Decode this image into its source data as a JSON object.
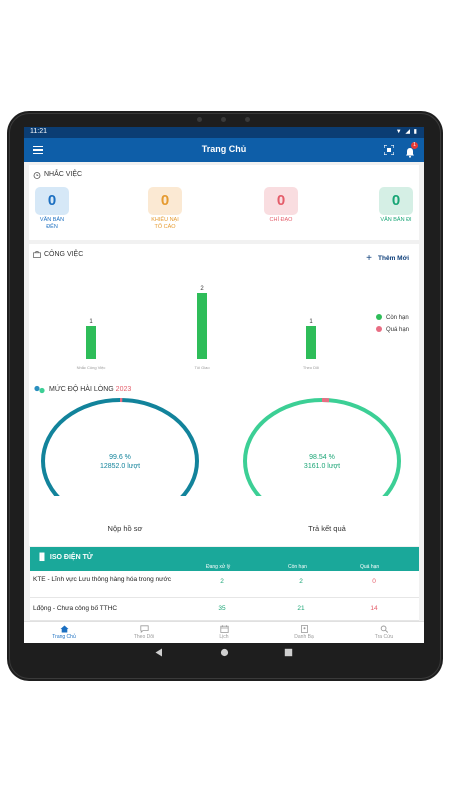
{
  "status_bar": {
    "time": "11:21"
  },
  "header": {
    "title": "Trang Chủ",
    "notification_count": "1"
  },
  "reminders": {
    "title": "NHẮC VIỆC",
    "items": [
      {
        "count": "0",
        "label": "VĂN BẢN ĐẾN",
        "color": "#1b6fc1",
        "bg": "#d6e8f7"
      },
      {
        "count": "0",
        "label": "KHIẾU NẠI TỐ CÁO",
        "color": "#e59a2f",
        "bg": "#fbe9d3"
      },
      {
        "count": "0",
        "label": "CHỈ ĐẠO",
        "color": "#e45c69",
        "bg": "#f9dde0"
      },
      {
        "count": "0",
        "label": "VĂN BẢN ĐI",
        "color": "#17a575",
        "bg": "#d5efe5"
      }
    ]
  },
  "work": {
    "title": "CÔNG VIỆC",
    "add_label": "Thêm Mới",
    "legend": [
      {
        "label": "Còn hạn",
        "color": "#2ebd59"
      },
      {
        "label": "Quá hạn",
        "color": "#e86d83"
      }
    ]
  },
  "chart_data": {
    "type": "bar",
    "categories": [
      "Nhắc Công Việc",
      "Tôi Giao",
      "Theo Dõi"
    ],
    "values": [
      1,
      2,
      1
    ],
    "ylim": [
      0,
      2
    ],
    "bar_color": "#2ebd59"
  },
  "satisfaction": {
    "title": "MỨC ĐỘ HÀI LÒNG",
    "year": "2023",
    "rings": [
      {
        "percent_text": "99.6 %",
        "count_text": "12852.0 lượt",
        "caption": "Nộp hồ sơ",
        "color": "#12839b",
        "text_color": "#12839b",
        "fraction": 0.996
      },
      {
        "percent_text": "98.54 %",
        "count_text": "3161.0 lượt",
        "caption": "Trả kết quả",
        "color": "#3ccf95",
        "text_color": "#1ba576",
        "fraction": 0.9854
      }
    ]
  },
  "iso": {
    "title": "ISO ĐIỆN TỬ",
    "columns": [
      "Đang xử lý",
      "Còn hạn",
      "Quá hạn"
    ],
    "rows": [
      {
        "name": "KTE - Lĩnh vực Lưu thông hàng hóa trong nước",
        "values": [
          "2",
          "2",
          "0"
        ]
      },
      {
        "name": "Lđộng - Chưa công bố TTHC",
        "values": [
          "35",
          "21",
          "14"
        ]
      }
    ],
    "value_colors": [
      "#1ba576",
      "#1ba576",
      "#e45c69"
    ]
  },
  "bottom_nav": [
    {
      "label": "Trang Chủ",
      "active": true
    },
    {
      "label": "Theo Dõi",
      "active": false
    },
    {
      "label": "Lịch",
      "active": false
    },
    {
      "label": "Danh Bạ",
      "active": false
    },
    {
      "label": "Tra Cứu",
      "active": false
    }
  ]
}
